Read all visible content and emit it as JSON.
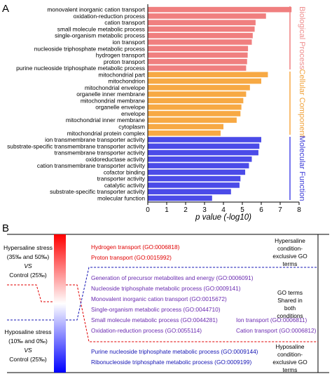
{
  "panel_a": {
    "letter": "A",
    "xlabel": "p value (-log10)",
    "groups": [
      {
        "name": "Biological Process",
        "color": "#f07f7f",
        "text_color": "#ee8f8f"
      },
      {
        "name": "Cellular Component",
        "color": "#f7a944",
        "text_color": "#f0a23b"
      },
      {
        "name": "Molecular Function",
        "color": "#4b4be8",
        "text_color": "#3c3cd8"
      }
    ]
  },
  "chart_data": {
    "type": "bar",
    "orientation": "horizontal",
    "xlabel": "p value (-log10)",
    "xlim": [
      0,
      8
    ],
    "xticks": [
      "0",
      "1",
      "2",
      "3",
      "4",
      "5",
      "6",
      "7",
      "8"
    ],
    "grid": false,
    "categories": [
      "monovalent inorganic cation transport",
      "oxidation-reduction process",
      "cation transport",
      "small molecule metabolic process",
      "single-organism metabolic process",
      "ion transport",
      "nucleoside triphosphate metabolic process",
      "hydrogen transport",
      "proton transport",
      "purine nucleoside triphosphate metabolic process",
      "mitochondrial part",
      "mitochondrion",
      "mitochondrial envelope",
      "organelle inner membrane",
      "mitochondrial membrane",
      "organelle envelope",
      "envelope",
      "mitochondrial inner membrane",
      "cytoplasm",
      "mitochondrial protein complex",
      "ion transmembrane transporter activity",
      "substrate-specific transmembrane transporter activity",
      "transmembrane transporter activity",
      "oxidoreductase activity",
      "cation transmembrane transporter activity",
      "cofactor binding",
      "transporter activity",
      "catalytic activity",
      "substrate-specific transporter activity",
      "molecular function"
    ],
    "values": [
      7.6,
      6.25,
      5.7,
      5.65,
      5.55,
      5.5,
      5.3,
      5.28,
      5.25,
      5.2,
      6.35,
      6.0,
      5.4,
      5.2,
      5.05,
      4.95,
      4.9,
      4.7,
      4.0,
      3.85,
      6.0,
      5.9,
      5.85,
      5.5,
      5.35,
      5.15,
      4.9,
      4.85,
      4.4,
      3.4
    ],
    "group_index": [
      0,
      0,
      0,
      0,
      0,
      0,
      0,
      0,
      0,
      0,
      1,
      1,
      1,
      1,
      1,
      1,
      1,
      1,
      1,
      1,
      2,
      2,
      2,
      2,
      2,
      2,
      2,
      2,
      2,
      2
    ]
  },
  "panel_b": {
    "letter": "B",
    "left_top": [
      "Hypersaline stress",
      "(35‰ and 50‰)",
      "VS",
      "Control (25‰)"
    ],
    "left_bottom": [
      "Hyposaline stress",
      "(10‰ and 0‰)",
      "VS",
      "Control (25‰)"
    ],
    "right_top": [
      "Hypersaline",
      "condition-",
      "exclusive GO",
      "terms"
    ],
    "right_middle": [
      "GO terms",
      "Shared in",
      "both",
      "conditions"
    ],
    "right_bottom": [
      "Hyposaline",
      "condition-",
      "exclusive GO",
      "terms"
    ],
    "hyper_terms": [
      "Hydrogen transport (GO:0006818)",
      "Proton transport (GO:0015992)"
    ],
    "shared_terms": [
      "Generation of precursor metabolites and energy (GO:0006091)",
      "Nucleoside triphosphate metabolic process (GO:0009141)",
      "Monovalent inorganic cation transport (GO:0015672)",
      "Single-organism metabolic process (GO:0044710)",
      "Small molecule metabolic process (GO:0044281)",
      "Oxidation-reduction process (GO:0055114)"
    ],
    "shared_terms_right": [
      "Ion transport (GO:0006811)",
      "Cation transport (GO:0006812)"
    ],
    "hypo_terms": [
      "Purine nucleoside triphosphate metabolic process (GO:0009144)",
      "Ribonucleoside triphosphate metabolic process (GO:0009199)"
    ],
    "colors": {
      "red": "#e00000",
      "purple": "#6a2ab0",
      "blue": "#1414b4"
    }
  }
}
